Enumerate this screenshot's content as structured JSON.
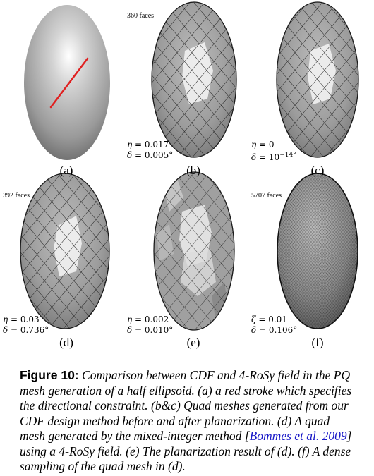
{
  "figure": {
    "panels": [
      {
        "id": "a",
        "label": "(a)",
        "faces": "",
        "eta": "",
        "delta": "",
        "zeta": "",
        "deltaExp": ""
      },
      {
        "id": "b",
        "label": "(b)",
        "faces": "360 faces",
        "eta": "0.017",
        "delta": "0.005°",
        "zeta": "",
        "deltaExp": ""
      },
      {
        "id": "c",
        "label": "(c)",
        "faces": "",
        "eta": "0",
        "delta": "10",
        "zeta": "",
        "deltaExp": "−14°"
      },
      {
        "id": "d",
        "label": "(d)",
        "faces": "392 faces",
        "eta": "0.03",
        "delta": "0.736°",
        "zeta": "",
        "deltaExp": ""
      },
      {
        "id": "e",
        "label": "(e)",
        "faces": "",
        "eta": "0.002",
        "delta": "0.010°",
        "zeta": "",
        "deltaExp": ""
      },
      {
        "id": "f",
        "label": "(f)",
        "faces": "5707 faces",
        "eta": "",
        "delta": "0.106°",
        "zeta": "0.01",
        "deltaExp": ""
      }
    ],
    "symbols": {
      "eta": "η",
      "delta": "δ",
      "zeta": "ζ",
      "eq": " = "
    }
  },
  "caption": {
    "lead": "Figure 10:",
    "part1": " Comparison between CDF and 4-RoSy field in the PQ mesh generation of a half ellipsoid. (a) a red stroke which specifies the directional constraint. (b&c) Quad meshes generated from our CDF design method before and after planarization. (d) A quad mesh generated by the mixed-integer method [",
    "cite": "Bommes et al. 2009",
    "part2": "] using a 4-RoSy field. (e) The planarization result of (d). (f) A dense sampling of the quad mesh in (d)."
  },
  "colors": {
    "stroke": "#e02020",
    "mesh_line": "#1a1a1a",
    "highlight": "#f2f2f2",
    "cite": "#1a1ac8"
  }
}
